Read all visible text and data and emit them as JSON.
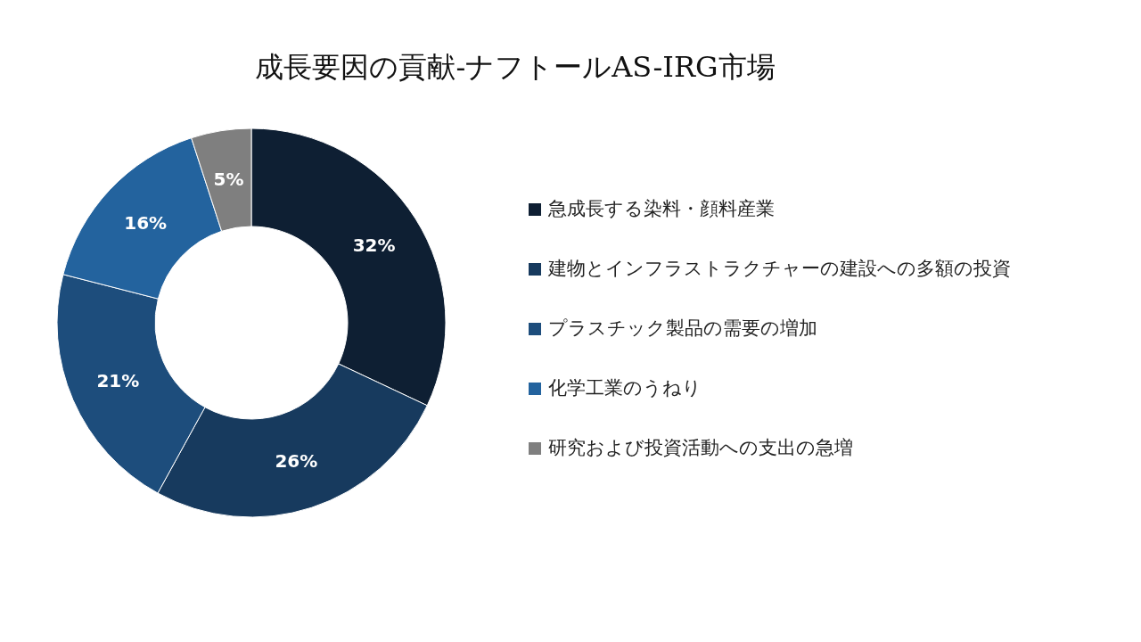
{
  "chart_data": {
    "type": "donut",
    "title": "成長要因の貢献-ナフトールAS-IRG市場",
    "categories": [
      "急成長する染料・顔料産業",
      "建物とインフラストラクチャーの建設への多額の投資",
      "プラスチック製品の需要の増加",
      "化学工業のうねり",
      "研究および投資活動への支出の急増"
    ],
    "values": [
      32,
      26,
      21,
      16,
      5
    ],
    "colors": [
      "#0e1f33",
      "#173a5e",
      "#1d4d7c",
      "#23639e",
      "#7f7f7f"
    ],
    "value_labels": [
      "32%",
      "26%",
      "21%",
      "16%",
      "5%"
    ],
    "legend": "right"
  }
}
